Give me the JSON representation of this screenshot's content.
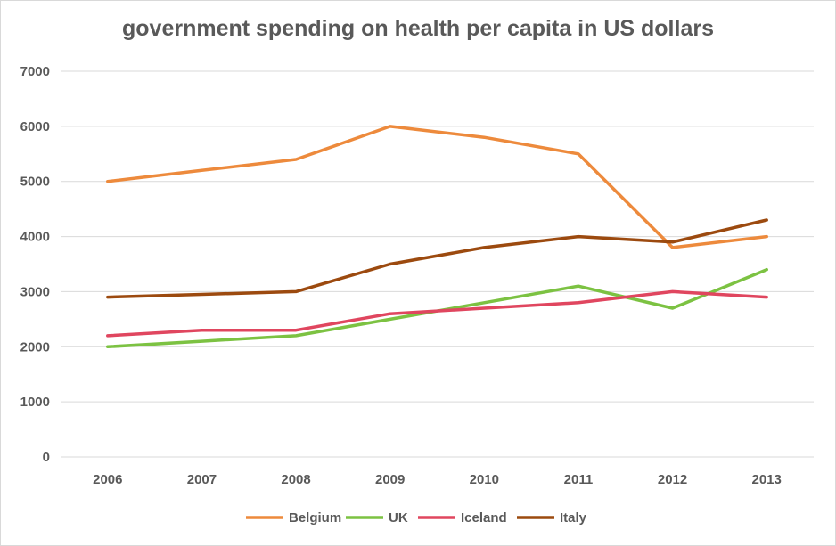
{
  "chart_data": {
    "type": "line",
    "title": "government spending on health per capita in US dollars",
    "xlabel": "",
    "ylabel": "",
    "categories": [
      "2006",
      "2007",
      "2008",
      "2009",
      "2010",
      "2011",
      "2012",
      "2013"
    ],
    "ylim": [
      0,
      7000
    ],
    "yticks": [
      0,
      1000,
      2000,
      3000,
      4000,
      5000,
      6000,
      7000
    ],
    "grid": true,
    "legend_position": "bottom",
    "series": [
      {
        "name": "Belgium",
        "color": "#ed8a3c",
        "values": [
          5000,
          5200,
          5400,
          6000,
          5800,
          5500,
          3800,
          4000
        ]
      },
      {
        "name": "UK",
        "color": "#7cc242",
        "values": [
          2000,
          2100,
          2200,
          2500,
          2800,
          3100,
          2700,
          3400
        ]
      },
      {
        "name": "Iceland",
        "color": "#e0465f",
        "values": [
          2200,
          2300,
          2300,
          2600,
          2700,
          2800,
          3000,
          2900
        ]
      },
      {
        "name": "Italy",
        "color": "#9c4a0f",
        "values": [
          2900,
          2950,
          3000,
          3500,
          3800,
          4000,
          3900,
          4300
        ]
      }
    ]
  }
}
